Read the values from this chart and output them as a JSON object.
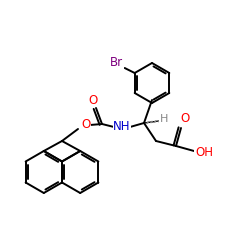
{
  "bg_color": "#ffffff",
  "atom_colors": {
    "O": "#ff0000",
    "N": "#0000cc",
    "Br": "#7f007f",
    "H": "#888888",
    "C": "#000000"
  },
  "bond_color": "#000000",
  "bond_width": 1.4,
  "figsize": [
    2.5,
    2.5
  ],
  "dpi": 100
}
